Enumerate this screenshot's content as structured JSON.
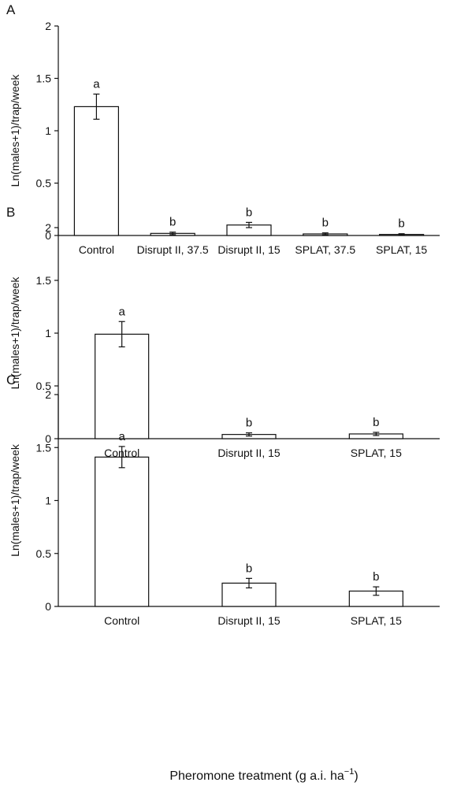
{
  "chart_data": [
    {
      "type": "bar",
      "panel": "A",
      "categories": [
        "Control",
        "Disrupt II, 37.5",
        "Disrupt II, 15",
        "SPLAT, 37.5",
        "SPLAT, 15"
      ],
      "values": [
        1.23,
        0.02,
        0.1,
        0.015,
        0.01
      ],
      "errors": [
        0.12,
        0.012,
        0.025,
        0.01,
        0.007
      ],
      "significance": [
        "a",
        "b",
        "b",
        "b",
        "b"
      ],
      "ylabel": "Ln(males+1)/trap/week",
      "ylim": [
        0,
        2
      ],
      "yticks": [
        "0",
        "0.5",
        "1",
        "1.5",
        "2"
      ]
    },
    {
      "type": "bar",
      "panel": "B",
      "categories": [
        "Control",
        "Disrupt II, 15",
        "SPLAT, 15"
      ],
      "values": [
        0.99,
        0.04,
        0.045
      ],
      "errors": [
        0.12,
        0.015,
        0.015
      ],
      "significance": [
        "a",
        "b",
        "b"
      ],
      "ylabel": "Ln(males+1)/trap/week",
      "ylim": [
        0,
        2
      ],
      "yticks": [
        "0",
        "0.5",
        "1",
        "1.5",
        "2"
      ]
    },
    {
      "type": "bar",
      "panel": "C",
      "categories": [
        "Control",
        "Disrupt II, 15",
        "SPLAT, 15"
      ],
      "values": [
        1.41,
        0.22,
        0.145
      ],
      "errors": [
        0.1,
        0.045,
        0.04
      ],
      "significance": [
        "a",
        "b",
        "b"
      ],
      "ylabel": "Ln(males+1)/trap/week",
      "ylim": [
        0,
        2
      ],
      "yticks": [
        "0",
        "0.5",
        "1",
        "1.5",
        "2"
      ]
    }
  ],
  "xlabel_main": "Pheromone treatment (g a.i. ha",
  "xlabel_sup": "−1",
  "xlabel_close": ")"
}
